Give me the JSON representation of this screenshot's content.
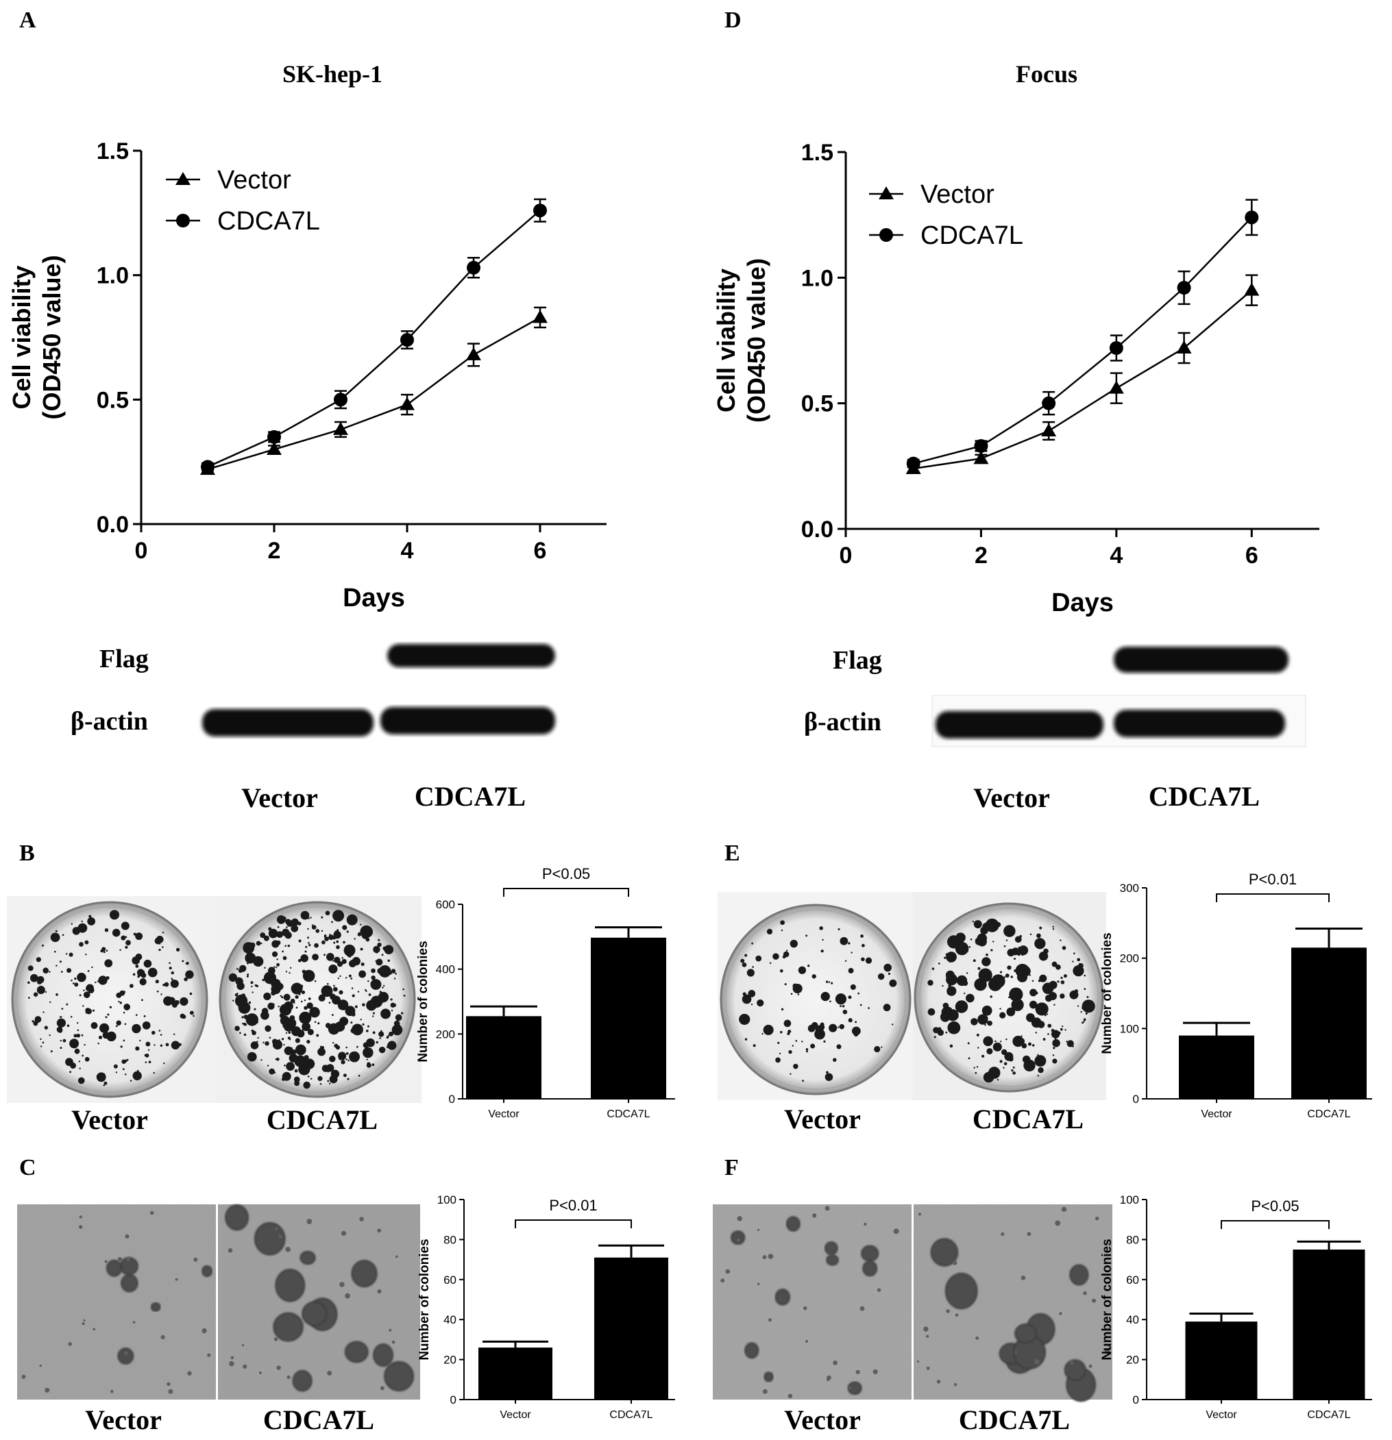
{
  "panels": {
    "A": {
      "letter": "A",
      "title": "SK-hep-1"
    },
    "D": {
      "letter": "D",
      "title": "Focus"
    },
    "B": {
      "letter": "B"
    },
    "C": {
      "letter": "C"
    },
    "E": {
      "letter": "E"
    },
    "F": {
      "letter": "F"
    }
  },
  "blots": {
    "A": {
      "rows": [
        "Flag",
        "β-actin"
      ],
      "lanes": [
        "Vector",
        "CDCA7L"
      ]
    },
    "D": {
      "rows": [
        "Flag",
        "β-actin"
      ],
      "lanes": [
        "Vector",
        "CDCA7L"
      ]
    }
  },
  "photo_labels": {
    "B": [
      "Vector",
      "CDCA7L"
    ],
    "C": [
      "Vector",
      "CDCA7L"
    ],
    "E": [
      "Vector",
      "CDCA7L"
    ],
    "F": [
      "Vector",
      "CDCA7L"
    ]
  },
  "chart_data": [
    {
      "id": "A",
      "type": "line",
      "xlabel": "Days",
      "ylabel": [
        "Cell viability",
        "(OD450 value)"
      ],
      "xlim": [
        0,
        7
      ],
      "ylim": [
        0,
        1.5
      ],
      "xticks": [
        "0",
        "2",
        "4",
        "6"
      ],
      "yticks": [
        "0.0",
        "0.5",
        "1.0",
        "1.5"
      ],
      "legend": "top-left",
      "x": [
        1,
        2,
        3,
        4,
        5,
        6
      ],
      "series": [
        {
          "name": "Vector",
          "marker": "triangle",
          "values": [
            0.22,
            0.3,
            0.38,
            0.48,
            0.68,
            0.83
          ],
          "errors": [
            0.015,
            0.015,
            0.03,
            0.04,
            0.045,
            0.04
          ]
        },
        {
          "name": "CDCA7L",
          "marker": "circle",
          "values": [
            0.23,
            0.35,
            0.5,
            0.74,
            1.03,
            1.26
          ],
          "errors": [
            0.015,
            0.02,
            0.035,
            0.035,
            0.04,
            0.045
          ]
        }
      ]
    },
    {
      "id": "D",
      "type": "line",
      "xlabel": "Days",
      "ylabel": [
        "Cell viability",
        "(OD450 value)"
      ],
      "xlim": [
        0,
        7
      ],
      "ylim": [
        0,
        1.5
      ],
      "xticks": [
        "0",
        "2",
        "4",
        "6"
      ],
      "yticks": [
        "0.0",
        "0.5",
        "1.0",
        "1.5"
      ],
      "legend": "top-left",
      "x": [
        1,
        2,
        3,
        4,
        5,
        6
      ],
      "series": [
        {
          "name": "Vector",
          "marker": "triangle",
          "values": [
            0.24,
            0.28,
            0.39,
            0.56,
            0.72,
            0.95
          ],
          "errors": [
            0.015,
            0.015,
            0.035,
            0.06,
            0.06,
            0.06
          ]
        },
        {
          "name": "CDCA7L",
          "marker": "circle",
          "values": [
            0.26,
            0.33,
            0.5,
            0.72,
            0.96,
            1.24
          ],
          "errors": [
            0.015,
            0.02,
            0.045,
            0.05,
            0.065,
            0.07
          ]
        }
      ]
    },
    {
      "id": "B",
      "type": "bar",
      "annotation": "P<0.05",
      "ylabel": "Number of colonies",
      "categories": [
        "Vector",
        "CDCA7L"
      ],
      "values": [
        255,
        497
      ],
      "errors": [
        30,
        32
      ],
      "ylim": [
        0,
        600
      ],
      "yticks": [
        "0",
        "200",
        "400",
        "600"
      ]
    },
    {
      "id": "E",
      "type": "bar",
      "annotation": "P<0.01",
      "ylabel": "Number of colonies",
      "categories": [
        "Vector",
        "CDCA7L"
      ],
      "values": [
        90,
        215
      ],
      "errors": [
        18,
        27
      ],
      "ylim": [
        0,
        300
      ],
      "yticks": [
        "0",
        "100",
        "200",
        "300"
      ]
    },
    {
      "id": "C",
      "type": "bar",
      "annotation": "P<0.01",
      "ylabel": "Number of colonies",
      "categories": [
        "Vector",
        "CDCA7L"
      ],
      "values": [
        26,
        71
      ],
      "errors": [
        3,
        6
      ],
      "ylim": [
        0,
        100
      ],
      "yticks": [
        "0",
        "20",
        "40",
        "60",
        "80",
        "100"
      ]
    },
    {
      "id": "F",
      "type": "bar",
      "annotation": "P<0.05",
      "ylabel": "Number of colonies",
      "categories": [
        "Vector",
        "CDCA7L"
      ],
      "values": [
        39,
        75
      ],
      "errors": [
        4,
        4
      ],
      "ylim": [
        0,
        100
      ],
      "yticks": [
        "0",
        "20",
        "40",
        "60",
        "80",
        "100"
      ]
    }
  ]
}
